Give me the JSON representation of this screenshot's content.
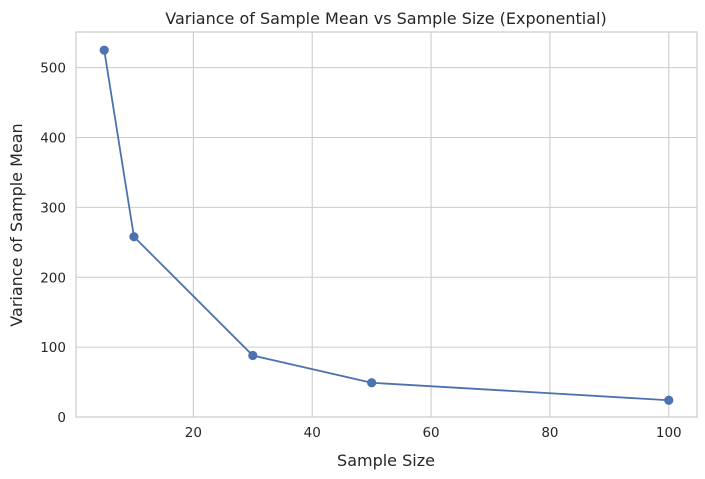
{
  "chart_data": {
    "type": "line",
    "title": "Variance of Sample Mean vs Sample Size (Exponential)",
    "xlabel": "Sample Size",
    "ylabel": "Variance of Sample Mean",
    "xlim": [
      0.25,
      104.75
    ],
    "ylim": [
      0,
      551
    ],
    "xticks": [
      20,
      40,
      60,
      80,
      100
    ],
    "yticks": [
      0,
      100,
      200,
      300,
      400,
      500
    ],
    "grid": true,
    "legend": "none",
    "series": [
      {
        "color": "#4c72b0",
        "marker": "circle",
        "x": [
          5,
          10,
          30,
          50,
          100
        ],
        "y": [
          525,
          258,
          88,
          49,
          24
        ]
      }
    ]
  }
}
